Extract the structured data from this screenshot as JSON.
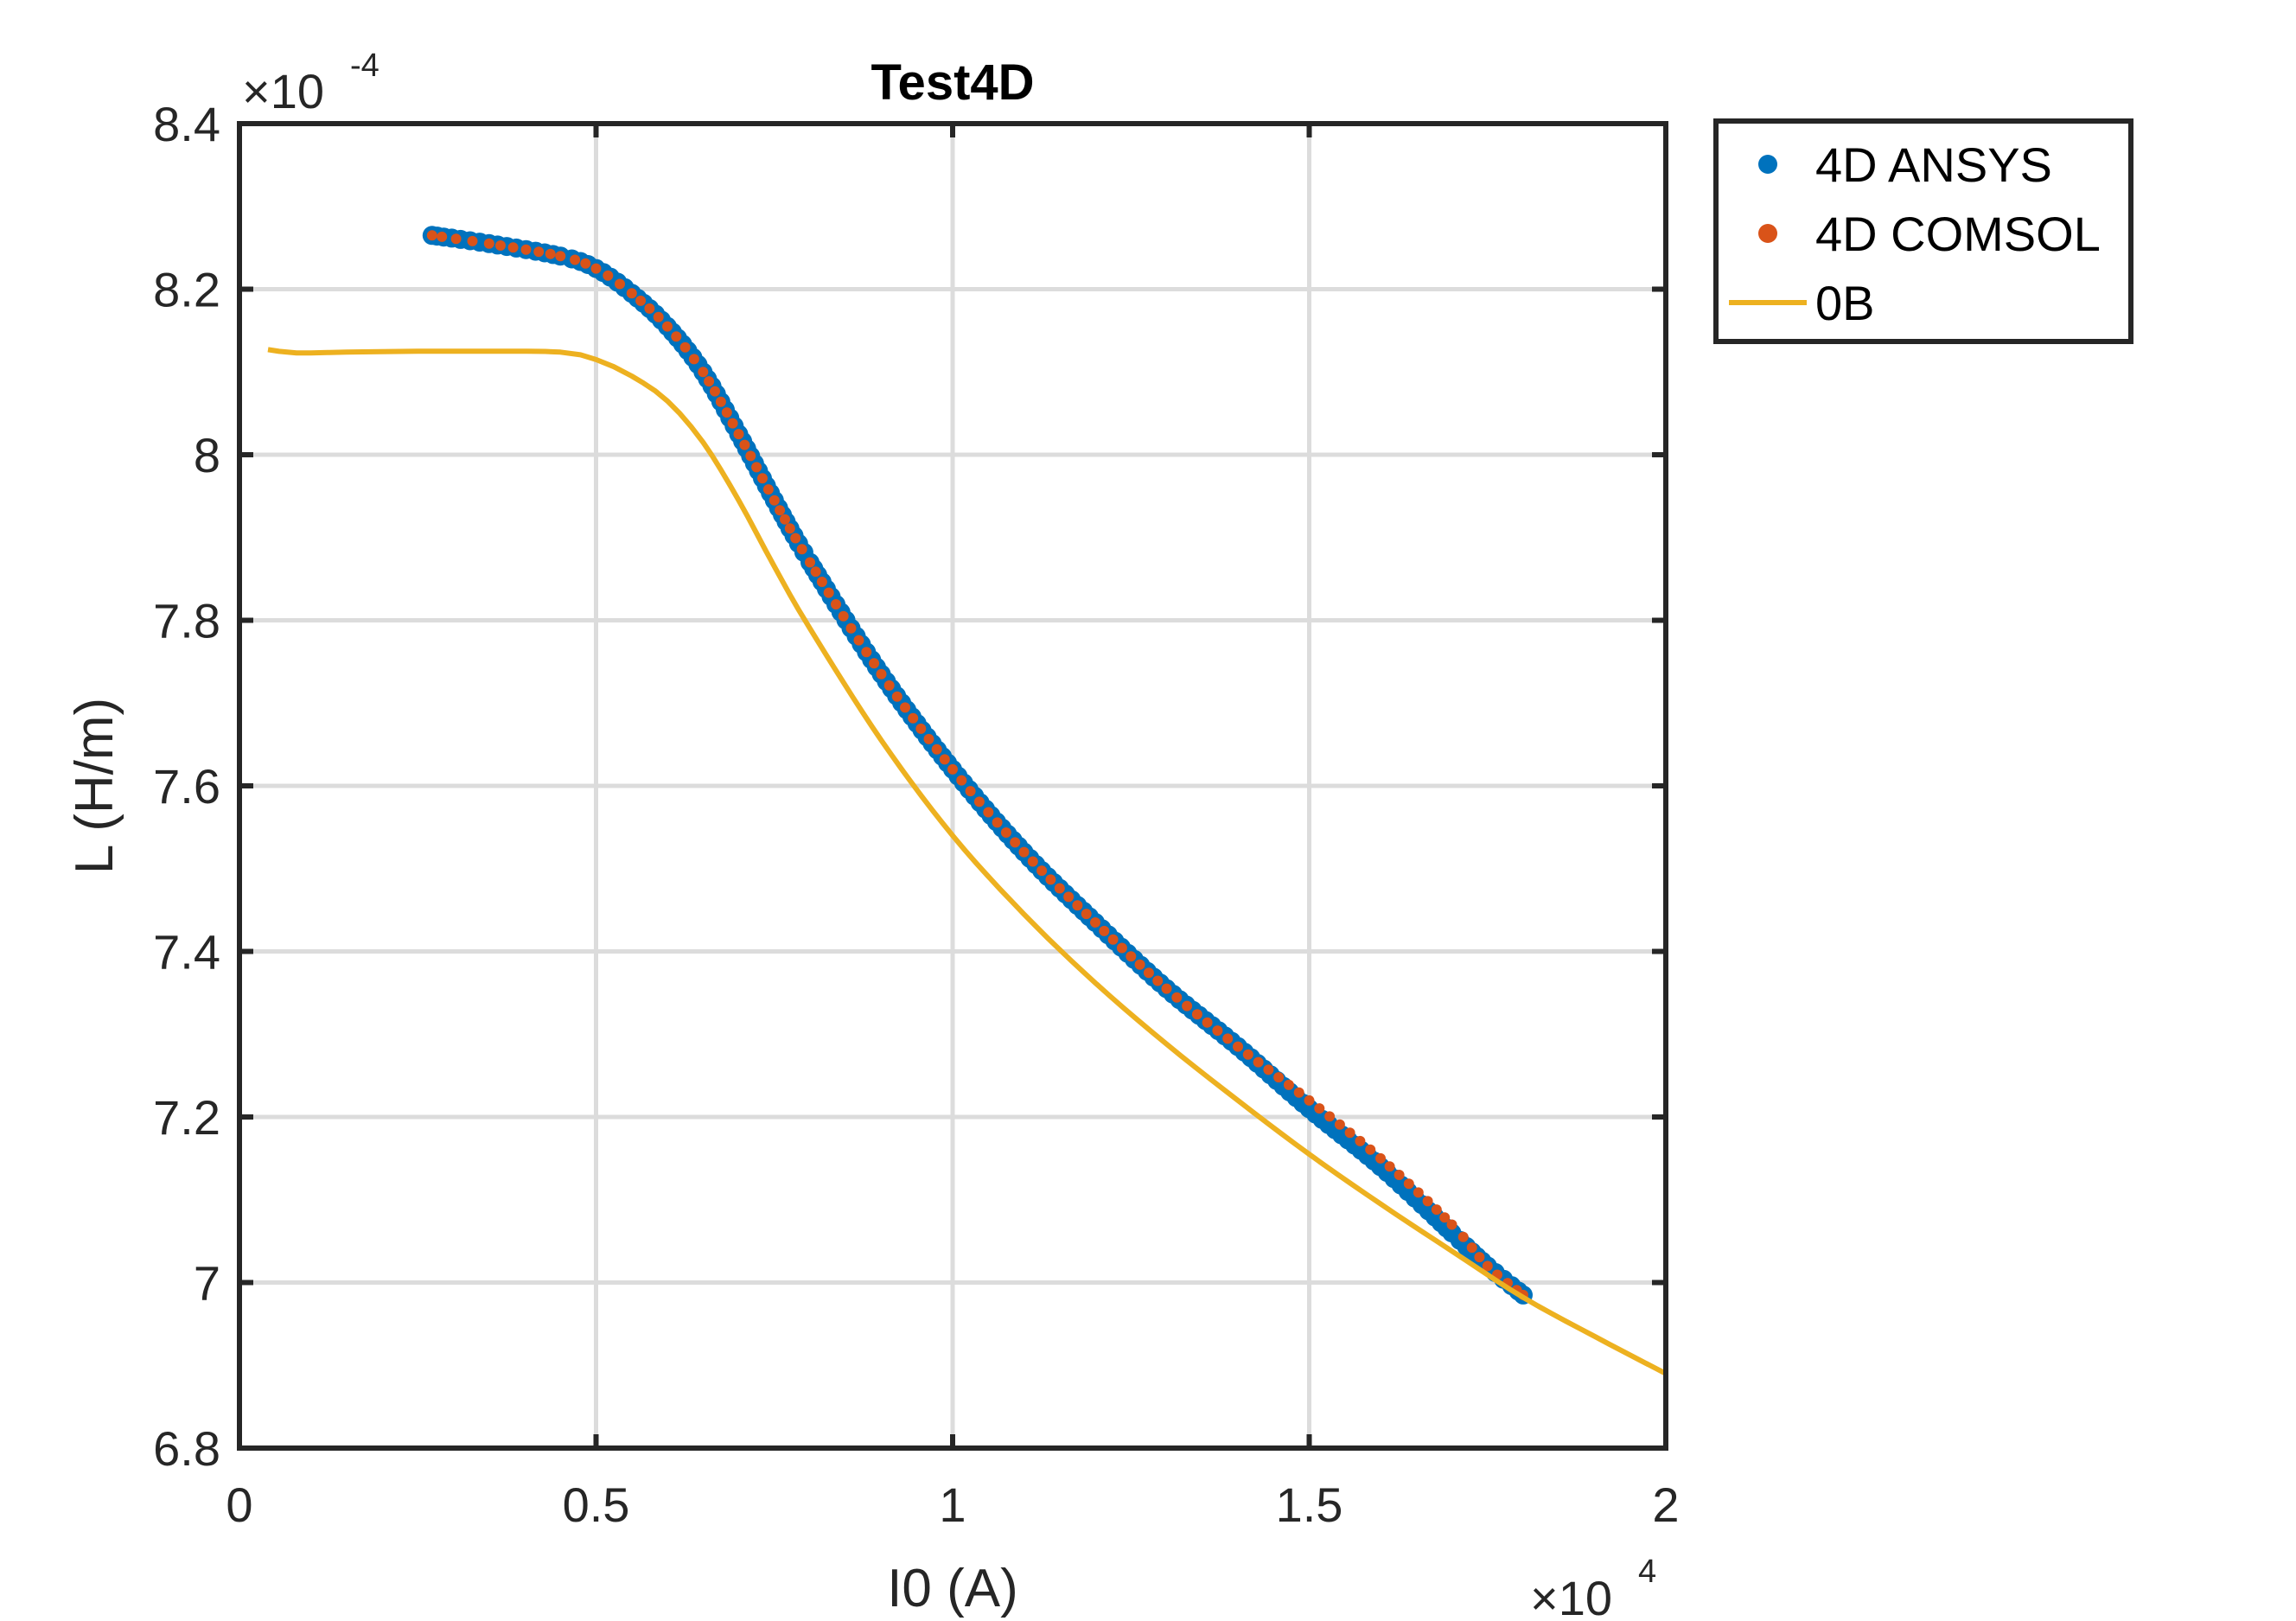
{
  "chart_data": {
    "type": "scatter",
    "title": "Test4D",
    "xlabel": "I0 (A)",
    "ylabel": "L (H/m)",
    "xlim": [
      0,
      20000
    ],
    "ylim": [
      0.00068,
      0.00084
    ],
    "x_ticks": [
      0,
      5000,
      10000,
      15000,
      20000
    ],
    "x_tick_labels": [
      "0",
      "0.5",
      "1",
      "1.5",
      "2"
    ],
    "y_ticks": [
      0.00068,
      0.0007,
      0.00072,
      0.00074,
      0.00076,
      0.00078,
      0.0008,
      0.00082,
      0.00084
    ],
    "y_tick_labels": [
      "6.8",
      "7",
      "7.2",
      "7.4",
      "7.6",
      "7.8",
      "8",
      "8.2",
      "8.4"
    ],
    "x_exponent": {
      "base": "×10",
      "power": "4"
    },
    "y_exponent": {
      "base": "×10",
      "power": "-4"
    },
    "grid": true,
    "legend_position": "outside-top-right",
    "series": [
      {
        "name": "4D ANSYS",
        "style": "markers",
        "color": "#0072BD",
        "x": [
          2700,
          3500,
          4500,
          5000,
          5500,
          6000,
          6500,
          7000,
          7500,
          8000,
          9000,
          10000,
          11000,
          12000,
          13000,
          14000,
          15000,
          16000,
          17000,
          17500,
          18000
        ],
        "y": [
          0.0008265,
          0.0008255,
          0.000824,
          0.0008225,
          0.0008195,
          0.0008155,
          0.00081,
          0.0008025,
          0.0007945,
          0.000787,
          0.0007735,
          0.000762,
          0.000752,
          0.0007435,
          0.0007355,
          0.0007285,
          0.000721,
          0.000714,
          0.000706,
          0.000702,
          0.0006985
        ]
      },
      {
        "name": "4D COMSOL",
        "style": "markers",
        "color": "#D95319",
        "x": [
          2700,
          3500,
          4500,
          5000,
          5500,
          6000,
          6500,
          7000,
          7500,
          8000,
          9000,
          10000,
          11000,
          12000,
          13000,
          14000,
          15000,
          16000,
          17000,
          17500,
          18000
        ],
        "y": [
          0.0008265,
          0.0008255,
          0.000824,
          0.0008225,
          0.0008195,
          0.0008155,
          0.00081,
          0.0008025,
          0.0007945,
          0.000787,
          0.0007735,
          0.000762,
          0.000752,
          0.0007435,
          0.0007355,
          0.0007285,
          0.000722,
          0.000715,
          0.000707,
          0.000702,
          0.0006985
        ]
      },
      {
        "name": "0B",
        "style": "line",
        "color": "#EDB120",
        "x": [
          400,
          800,
          1500,
          2500,
          3500,
          4500,
          5000,
          5500,
          6000,
          6500,
          7000,
          7500,
          8000,
          9000,
          10000,
          11000,
          12000,
          13000,
          14000,
          15000,
          16000,
          17000,
          18000,
          19000,
          20000
        ],
        "y": [
          0.0008127,
          0.0008123,
          0.0008124,
          0.0008125,
          0.0008125,
          0.0008124,
          0.0008115,
          0.0008095,
          0.0008065,
          0.0008015,
          0.0007945,
          0.0007865,
          0.000779,
          0.0007655,
          0.000754,
          0.0007445,
          0.0007362,
          0.0007288,
          0.000722,
          0.0007155,
          0.0007095,
          0.0007038,
          0.0006982,
          0.0006935,
          0.000689
        ]
      }
    ]
  }
}
